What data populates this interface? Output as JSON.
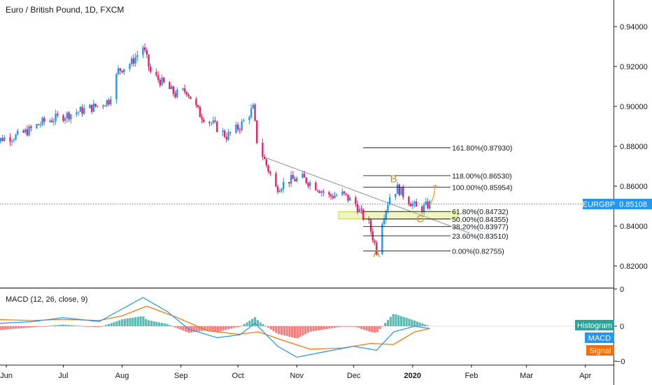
{
  "header": {
    "title": "Euro / British Pound, 1D, FXCM"
  },
  "macd": {
    "title": "MACD (12, 26, close, 9)",
    "legend": [
      "Histogram",
      "MACD",
      "Signal"
    ],
    "ticks": [
      "0",
      "0",
      "−0"
    ]
  },
  "price_tag": {
    "symbol": "EURGBP",
    "value": "0.85108"
  },
  "colors": {
    "up": "#2196f3",
    "down": "#e91e63",
    "accent": "#2196f3",
    "macd_line": "#2196f3",
    "signal_line": "#ff6d00",
    "hist_pos": "#26a69a",
    "hist_neg": "#ef5350",
    "wave_label": "#c8901a"
  },
  "chart_data": {
    "type": "candlestick",
    "y_ticks": [
      "0.94000",
      "0.92000",
      "0.90000",
      "0.88000",
      "0.86000",
      "0.84000",
      "0.82000"
    ],
    "y_tick_values": [
      0.94,
      0.92,
      0.9,
      0.88,
      0.86,
      0.84,
      0.82
    ],
    "ylim": [
      0.8155,
      0.9505
    ],
    "x_ticks": [
      "Jun",
      "Jul",
      "Aug",
      "Sep",
      "Oct",
      "Nov",
      "Dec",
      "2020",
      "Feb",
      "Mar",
      "Apr"
    ],
    "x_tick_dates": [
      "2019-06-01",
      "2019-07-01",
      "2019-08-01",
      "2019-09-01",
      "2019-10-01",
      "2019-11-01",
      "2019-12-01",
      "2020-01-01",
      "2020-02-01",
      "2020-03-01",
      "2020-04-01"
    ],
    "close_path": [
      [
        "2019-05-23",
        0.88
      ],
      [
        "2019-05-30",
        0.884
      ],
      [
        "2019-06-06",
        0.885
      ],
      [
        "2019-06-13",
        0.888
      ],
      [
        "2019-06-20",
        0.892
      ],
      [
        "2019-06-27",
        0.894
      ],
      [
        "2019-07-04",
        0.896
      ],
      [
        "2019-07-11",
        0.898
      ],
      [
        "2019-07-18",
        0.9
      ],
      [
        "2019-07-25",
        0.903
      ],
      [
        "2019-07-30",
        0.918
      ],
      [
        "2019-08-06",
        0.922
      ],
      [
        "2019-08-12",
        0.93
      ],
      [
        "2019-08-16",
        0.917
      ],
      [
        "2019-08-22",
        0.912
      ],
      [
        "2019-08-29",
        0.906
      ],
      [
        "2019-09-04",
        0.908
      ],
      [
        "2019-09-11",
        0.896
      ],
      [
        "2019-09-18",
        0.891
      ],
      [
        "2019-09-25",
        0.885
      ],
      [
        "2019-10-02",
        0.89
      ],
      [
        "2019-10-09",
        0.899
      ],
      [
        "2019-10-11",
        0.883
      ],
      [
        "2019-10-15",
        0.873
      ],
      [
        "2019-10-21",
        0.859
      ],
      [
        "2019-10-28",
        0.863
      ],
      [
        "2019-11-04",
        0.864
      ],
      [
        "2019-11-11",
        0.86
      ],
      [
        "2019-11-18",
        0.855
      ],
      [
        "2019-11-25",
        0.856
      ],
      [
        "2019-12-02",
        0.851
      ],
      [
        "2019-12-05",
        0.846
      ],
      [
        "2019-12-09",
        0.841
      ],
      [
        "2019-12-13",
        0.828
      ],
      [
        "2019-12-16",
        0.843
      ],
      [
        "2019-12-20",
        0.855
      ],
      [
        "2019-12-24",
        0.859
      ],
      [
        "2019-12-30",
        0.853
      ],
      [
        "2020-01-03",
        0.849
      ],
      [
        "2020-01-06",
        0.849
      ],
      [
        "2020-01-10",
        0.851
      ]
    ],
    "fibonacci": [
      {
        "label": "161.80%(0.87930)",
        "value": 0.8793
      },
      {
        "label": "118.00%(0.86530)",
        "value": 0.8653
      },
      {
        "label": "100.00%(0.85954)",
        "value": 0.85954
      },
      {
        "label": "61.80%(0.84732)",
        "value": 0.84732
      },
      {
        "label": "50.00%(0.84355)",
        "value": 0.84355
      },
      {
        "label": "38.20%(0.83977)",
        "value": 0.83977
      },
      {
        "label": "23.60%(0.83510)",
        "value": 0.8351
      },
      {
        "label": "0.00%(0.82755)",
        "value": 0.82755
      }
    ],
    "wave_labels": [
      {
        "label": "A",
        "date": "2019-12-13",
        "value": 0.8245
      },
      {
        "label": "B",
        "date": "2019-12-22",
        "value": 0.862
      },
      {
        "label": "C",
        "date": "2020-01-05",
        "value": 0.842
      }
    ],
    "trendline": [
      [
        "2019-10-15",
        0.8745
      ],
      [
        "2020-01-31",
        0.8365
      ]
    ],
    "support_zone": [
      0.8436,
      0.8472
    ],
    "last_price": 0.85108
  }
}
